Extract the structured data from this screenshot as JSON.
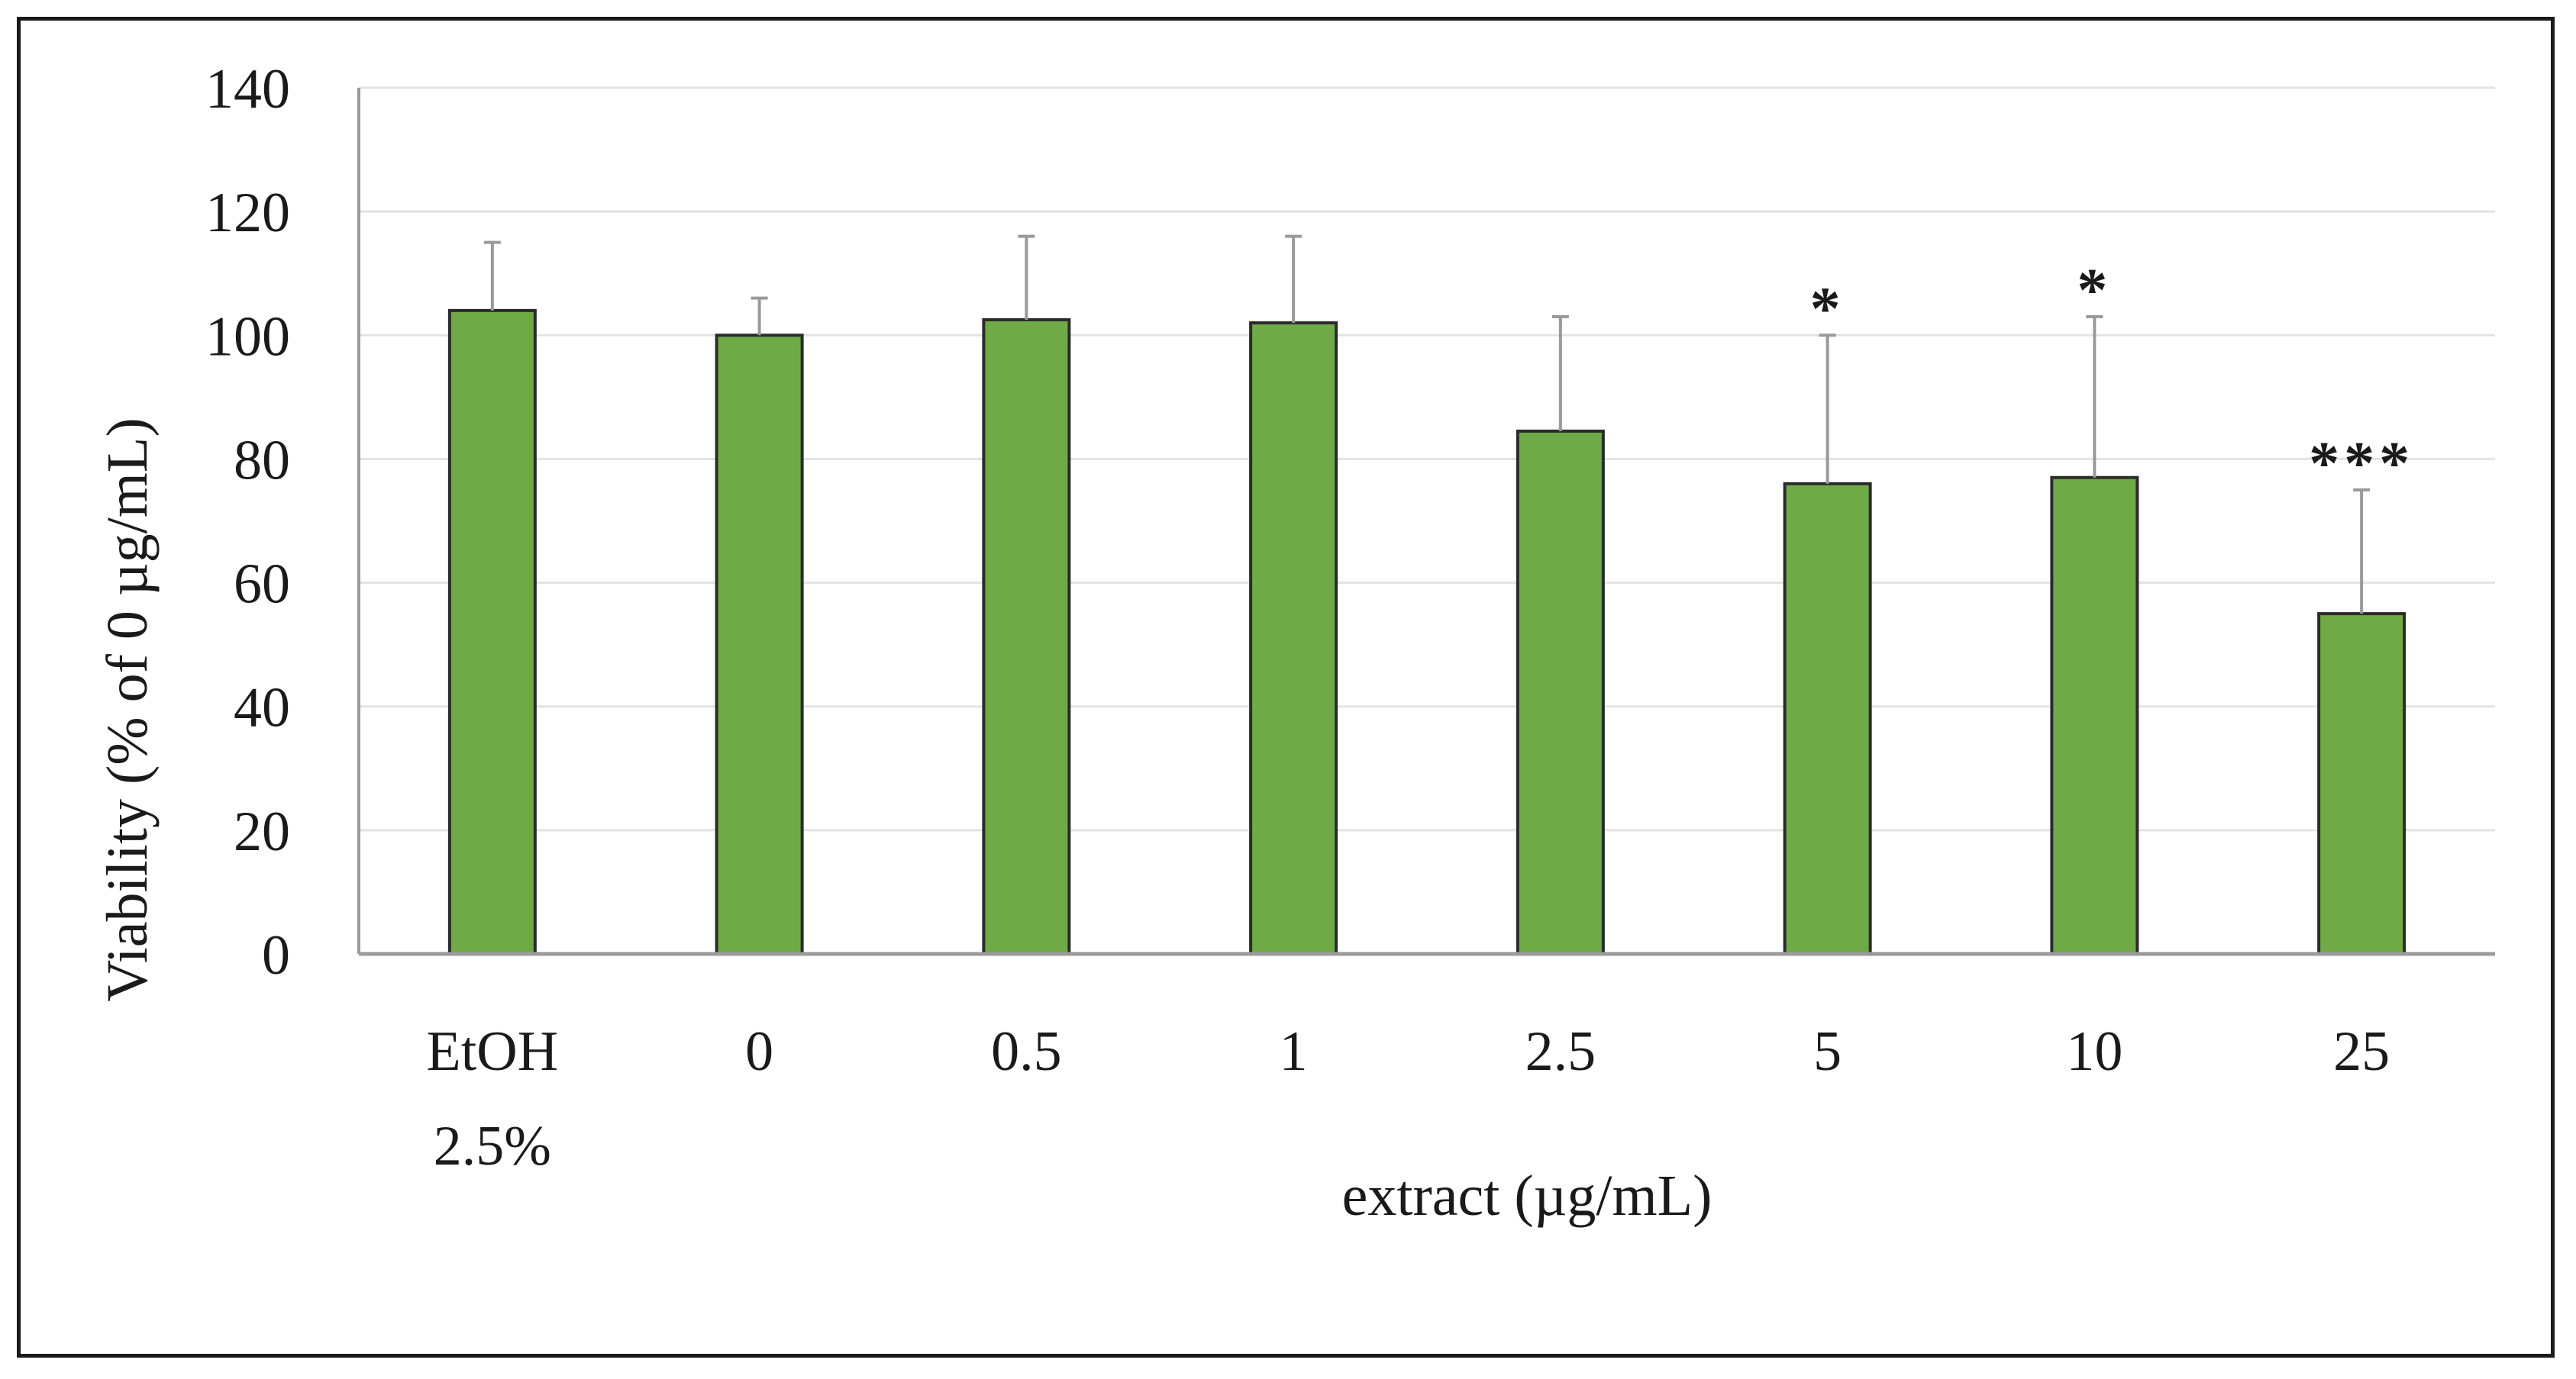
{
  "chart_data": {
    "type": "bar",
    "categories": [
      [
        "EtOH",
        "2.5%"
      ],
      [
        "0"
      ],
      [
        "0.5"
      ],
      [
        "1"
      ],
      [
        "2.5"
      ],
      [
        "5"
      ],
      [
        "10"
      ],
      [
        "25"
      ]
    ],
    "values": [
      104,
      100,
      102.5,
      102,
      84.5,
      76,
      77,
      55
    ],
    "error_upper": [
      11,
      6,
      13.5,
      14,
      18.5,
      24,
      26,
      20
    ],
    "significance": [
      "",
      "",
      "",
      "",
      "",
      "*",
      "*",
      "***"
    ],
    "xlabel": "extract (µg/mL)",
    "ylabel": "Viability (% of 0 µg/mL)",
    "ylim": [
      0,
      140
    ],
    "yticks": [
      0,
      20,
      40,
      60,
      80,
      100,
      120,
      140
    ],
    "grid": true,
    "legend": "none",
    "colors": {
      "bar_fill": "#6faa46",
      "bar_stroke": "#2b2b2b",
      "error_bar": "#9a9a9a",
      "grid": "#e3e3e3",
      "axis": "#9a9a9a"
    }
  }
}
